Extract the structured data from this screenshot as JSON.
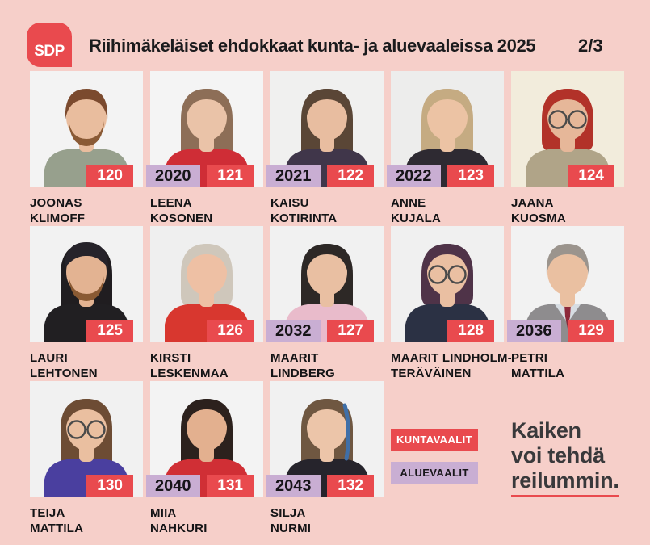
{
  "poster": {
    "logo_text": "SDP",
    "title": "Riihimäkeläiset ehdokkaat kunta- ja aluevaaleissa 2025",
    "page_indicator": "2/3"
  },
  "colors": {
    "background": "#f6cfc9",
    "accent_red": "#e94a4e",
    "accent_lavender": "#c9aed3",
    "text_dark": "#1b1b1d",
    "slogan_text": "#39393b"
  },
  "legend": {
    "kunta_label": "KUNTAVAALIT",
    "alue_label": "ALUEVAALIT"
  },
  "slogan": {
    "lines": [
      "Kaiken",
      "voi tehdä",
      "reilummin."
    ],
    "underlined_line": "reilummin."
  },
  "candidates": [
    {
      "name_line1": "JOONAS",
      "name_line2": "KLIMOFF",
      "kunta_number": "120",
      "alue_number": null,
      "avatar": {
        "bg": "#f3f3f3",
        "skin": "#e9bd9e",
        "hair": "#7b4a2e",
        "hair_length": "short",
        "beard": "#8a5a35",
        "top": "#97a08d"
      }
    },
    {
      "name_line1": "LEENA",
      "name_line2": "KOSONEN",
      "kunta_number": "121",
      "alue_number": "2020",
      "avatar": {
        "bg": "#f4f4f4",
        "skin": "#eac3a8",
        "hair": "#8d6e57",
        "hair_length": "long",
        "top": "#cf2d36"
      }
    },
    {
      "name_line1": "KAISU",
      "name_line2": "KOTIRINTA",
      "kunta_number": "122",
      "alue_number": "2021",
      "avatar": {
        "bg": "#f0f0ef",
        "skin": "#e8bda0",
        "hair": "#5a4636",
        "hair_length": "long",
        "top": "#40364a"
      }
    },
    {
      "name_line1": "ANNE",
      "name_line2": "KUJALA",
      "kunta_number": "123",
      "alue_number": "2022",
      "avatar": {
        "bg": "#ededec",
        "skin": "#ecc3a4",
        "hair": "#c5ab82",
        "hair_length": "long",
        "top": "#2e2a32"
      }
    },
    {
      "name_line1": "JAANA",
      "name_line2": "KUOSMA",
      "kunta_number": "124",
      "alue_number": null,
      "avatar": {
        "bg": "#f2ecdc",
        "skin": "#e6b799",
        "hair": "#b23229",
        "hair_length": "med",
        "glasses": true,
        "top": "#b0a488"
      }
    },
    {
      "name_line1": "LAURI",
      "name_line2": "LEHTONEN",
      "kunta_number": "125",
      "alue_number": null,
      "avatar": {
        "bg": "#f2f2f2",
        "skin": "#e3b392",
        "hair": "#201d20",
        "hair_length": "long",
        "bandana": "#26232a",
        "beard": "#8a5a33",
        "top": "#211f22"
      }
    },
    {
      "name_line1": "KIRSTI",
      "name_line2": "LESKENMAA",
      "kunta_number": "126",
      "alue_number": null,
      "avatar": {
        "bg": "#efefef",
        "skin": "#eec0a4",
        "hair": "#cfc7bb",
        "hair_length": "med",
        "top": "#d8372f"
      }
    },
    {
      "name_line1": "MAARIT",
      "name_line2": "LINDBERG",
      "kunta_number": "127",
      "alue_number": "2032",
      "avatar": {
        "bg": "#f1f1f1",
        "skin": "#e9bfa2",
        "hair": "#2d2826",
        "hair_length": "long",
        "top": "#e9bbcb"
      }
    },
    {
      "name_line1": "MAARIT LINDHOLM-",
      "name_line2": "TERÄVÄINEN",
      "kunta_number": "128",
      "alue_number": null,
      "avatar": {
        "bg": "#f0f0f0",
        "skin": "#eabfa2",
        "hair": "#4f3348",
        "hair_length": "med",
        "glasses": true,
        "top": "#2b3144"
      }
    },
    {
      "name_line1": "PETRI",
      "name_line2": "MATTILA",
      "kunta_number": "129",
      "alue_number": "2036",
      "avatar": {
        "bg": "#f2f2f2",
        "skin": "#eac0a1",
        "hair": "#9b948d",
        "hair_length": "short",
        "top": "#8e8c8e",
        "shirt": "#d7dde3",
        "tie": "#8d2a3b"
      }
    },
    {
      "name_line1": "TEIJA",
      "name_line2": "MATTILA",
      "kunta_number": "130",
      "alue_number": null,
      "avatar": {
        "bg": "#f1f1f1",
        "skin": "#eabfa0",
        "hair": "#6d4c34",
        "hair_length": "long",
        "glasses": true,
        "top": "#4a3f9f"
      }
    },
    {
      "name_line1": "MIIA",
      "name_line2": "NAHKURI",
      "kunta_number": "131",
      "alue_number": "2040",
      "avatar": {
        "bg": "#f3f3f3",
        "skin": "#e3b08f",
        "hair": "#2c211d",
        "hair_length": "long",
        "top": "#d02f35"
      }
    },
    {
      "name_line1": "SILJA",
      "name_line2": "NURMI",
      "kunta_number": "132",
      "alue_number": "2043",
      "avatar": {
        "bg": "#f1f1f1",
        "skin": "#ecc5a9",
        "hair": "#6f5741",
        "hair_length": "long",
        "streak": "#3f6fa8",
        "top": "#26242c"
      }
    }
  ]
}
